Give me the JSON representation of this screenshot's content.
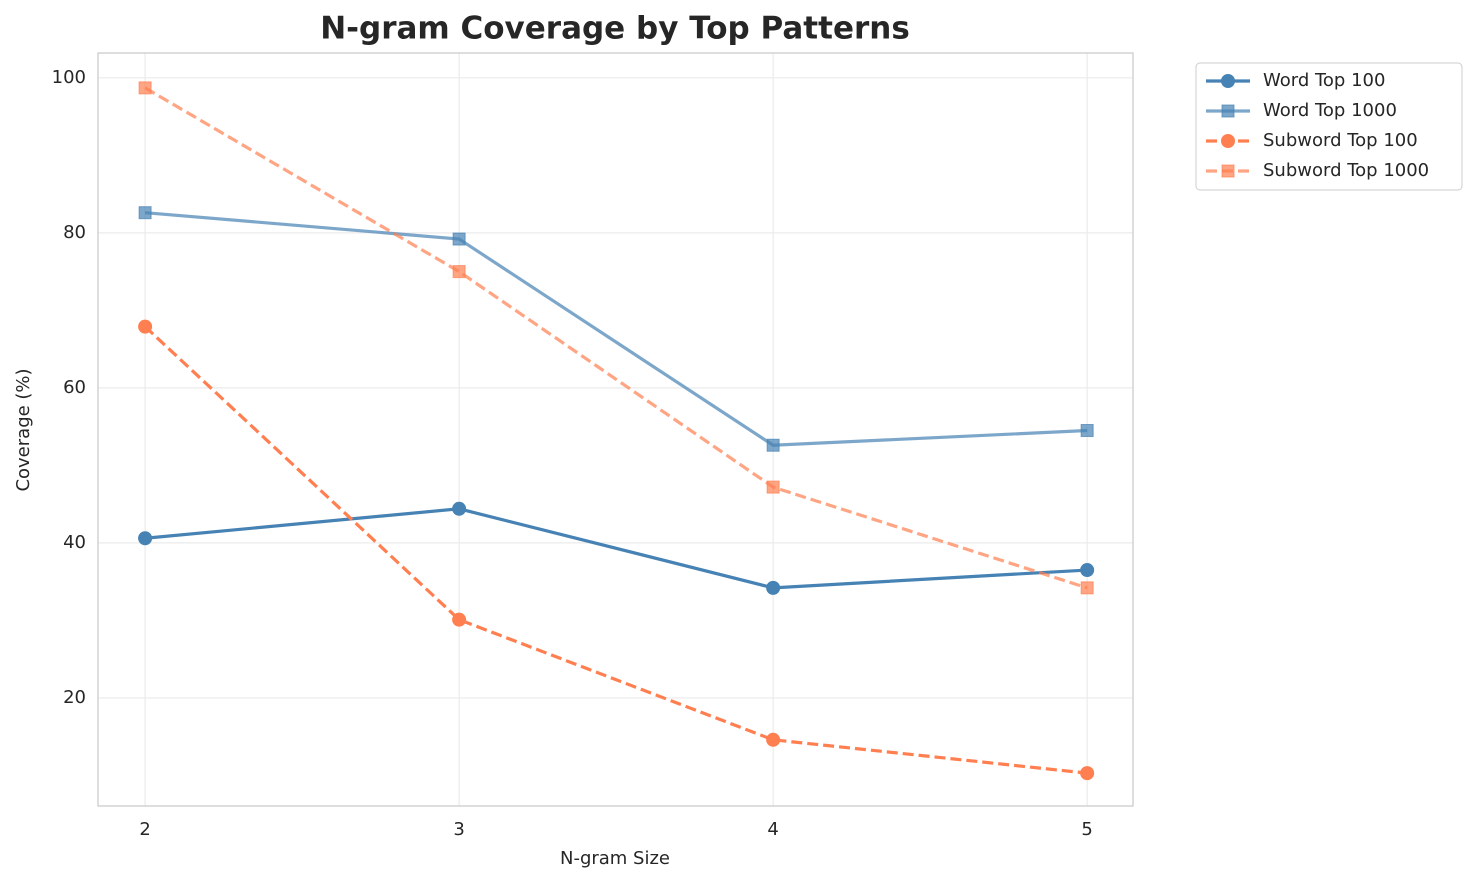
{
  "chart_data": {
    "type": "line",
    "title": "N-gram Coverage by Top Patterns",
    "x_label": "N-gram Size",
    "y_label": "Coverage (%)",
    "x": [
      2,
      3,
      4,
      5
    ],
    "series": [
      {
        "name": "Word Top 100",
        "color": "#4682b4",
        "opacity": 1,
        "linestyle": "solid",
        "marker": "circle",
        "values": [
          40.6,
          44.4,
          34.2,
          36.5
        ]
      },
      {
        "name": "Word Top 1000",
        "color": "#4682b4",
        "opacity": 0.7,
        "linestyle": "solid",
        "marker": "square",
        "values": [
          82.6,
          79.2,
          52.6,
          54.5
        ]
      },
      {
        "name": "Subword Top 100",
        "color": "#ff7f50",
        "opacity": 1,
        "linestyle": "dashed",
        "marker": "circle",
        "values": [
          67.9,
          30.1,
          14.6,
          10.3
        ]
      },
      {
        "name": "Subword Top 1000",
        "color": "#ff7f50",
        "opacity": 0.7,
        "linestyle": "dashed",
        "marker": "square",
        "values": [
          98.7,
          75.0,
          47.2,
          34.2
        ]
      }
    ],
    "xlim": [
      1.85,
      5.146
    ],
    "ylim": [
      6.06,
      103.2
    ],
    "xticks": [
      2,
      3,
      4,
      5
    ],
    "yticks": [
      20,
      40,
      60,
      80,
      100
    ],
    "grid": true,
    "legend": "outside upper right"
  }
}
